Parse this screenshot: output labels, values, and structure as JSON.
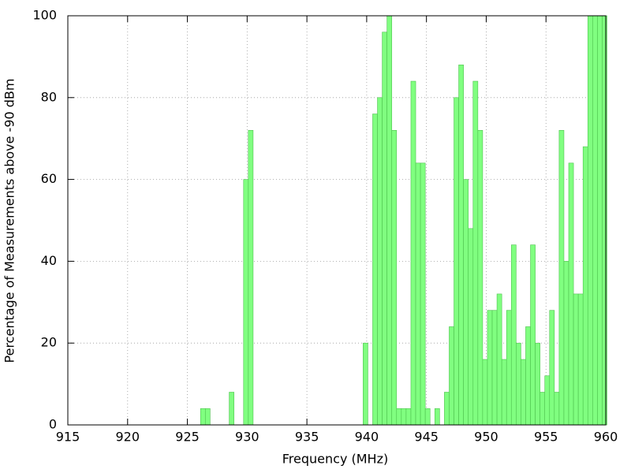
{
  "chart_data": {
    "type": "bar",
    "xlabel": "Frequency (MHz)",
    "ylabel": "Percentage of Measurements above -90 dBm",
    "x": [
      926.3,
      926.7,
      928.7,
      929.9,
      930.3,
      939.9,
      940.7,
      941.1,
      941.5,
      941.9,
      942.3,
      942.7,
      943.1,
      943.5,
      943.9,
      944.3,
      944.7,
      945.1,
      945.9,
      946.7,
      947.1,
      947.5,
      947.9,
      948.3,
      948.7,
      949.1,
      949.5,
      949.9,
      950.3,
      950.7,
      951.1,
      951.5,
      951.9,
      952.3,
      952.7,
      953.1,
      953.5,
      953.9,
      954.3,
      954.7,
      955.1,
      955.5,
      955.9,
      956.3,
      956.7,
      957.1,
      957.5,
      957.9,
      958.3,
      958.7,
      959.1,
      959.5,
      959.9
    ],
    "values": [
      4,
      4,
      8,
      60,
      72,
      20,
      76,
      80,
      96,
      100,
      72,
      4,
      4,
      4,
      84,
      64,
      64,
      4,
      4,
      8,
      24,
      80,
      88,
      60,
      48,
      84,
      72,
      16,
      28,
      28,
      32,
      16,
      28,
      44,
      20,
      16,
      24,
      44,
      20,
      8,
      12,
      28,
      8,
      72,
      40,
      64,
      32,
      32,
      68,
      100,
      100,
      100,
      100
    ],
    "color": "#80ff80",
    "xlim": [
      915,
      960
    ],
    "ylim": [
      0,
      100
    ],
    "xticks": [
      915,
      920,
      925,
      930,
      935,
      940,
      945,
      950,
      955,
      960
    ],
    "yticks": [
      0,
      20,
      40,
      60,
      80,
      100
    ],
    "grid": true
  }
}
